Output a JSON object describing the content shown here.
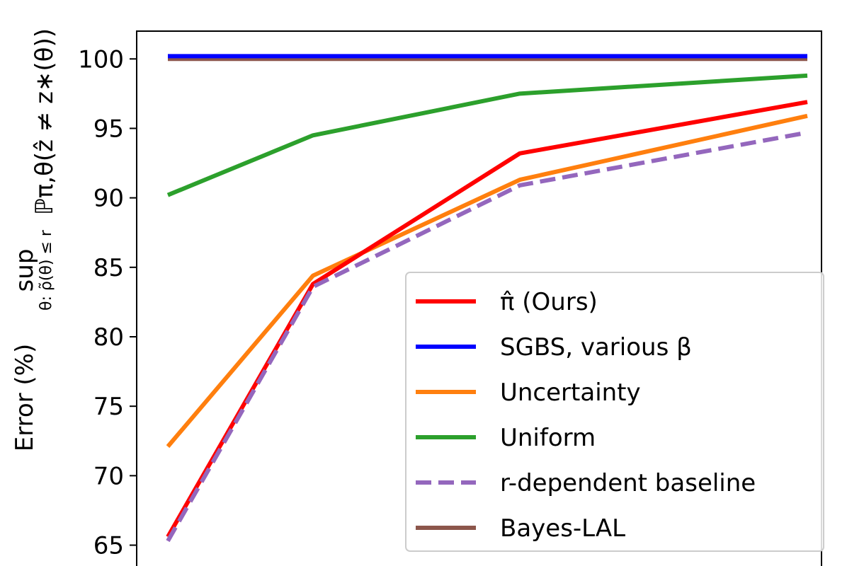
{
  "chart_data": {
    "type": "line",
    "title": "",
    "xlabel": "",
    "ylabel": "Error (%)  sup θ: ρ̃(θ) ≤ r  ℙπ,θ(ẑ ≠ z*(θ))",
    "ylabel_parts": {
      "prefix": "Error (%)",
      "sup": "sup",
      "sup_sub": "θ: ρ̃(θ) ≤ r",
      "prob": "ℙπ,θ(ẑ ≠ z∗(θ))"
    },
    "ylim": [
      63.5,
      102
    ],
    "yticks": [
      65,
      70,
      75,
      80,
      85,
      90,
      95,
      100
    ],
    "ytick_labels": [
      "65",
      "70",
      "75",
      "80",
      "85",
      "90",
      "95",
      "100"
    ],
    "x": [
      1,
      2,
      3,
      4
    ],
    "legend_placement": "lower-right",
    "grid": false,
    "series": [
      {
        "name": "π̂ (Ours)",
        "color": "#ff0000",
        "dash": "solid",
        "values": [
          65.6,
          83.8,
          93.2,
          96.9
        ]
      },
      {
        "name": "SGBS, various β",
        "color": "#0000ff",
        "dash": "solid",
        "values": [
          100.2,
          100.2,
          100.2,
          100.2
        ]
      },
      {
        "name": "Uncertainty",
        "color": "#ff7f0e",
        "dash": "solid",
        "values": [
          72.1,
          84.4,
          91.3,
          95.9
        ]
      },
      {
        "name": "Uniform",
        "color": "#2ca02c",
        "dash": "solid",
        "values": [
          90.2,
          94.5,
          97.5,
          98.8
        ]
      },
      {
        "name": "r-dependent baseline",
        "color": "#9467bd",
        "dash": "dashed",
        "values": [
          65.3,
          83.6,
          90.9,
          94.7
        ]
      },
      {
        "name": "Bayes-LAL",
        "color": "#8c564b",
        "dash": "solid",
        "values": [
          100.0,
          100.0,
          100.0,
          100.0
        ]
      }
    ]
  }
}
